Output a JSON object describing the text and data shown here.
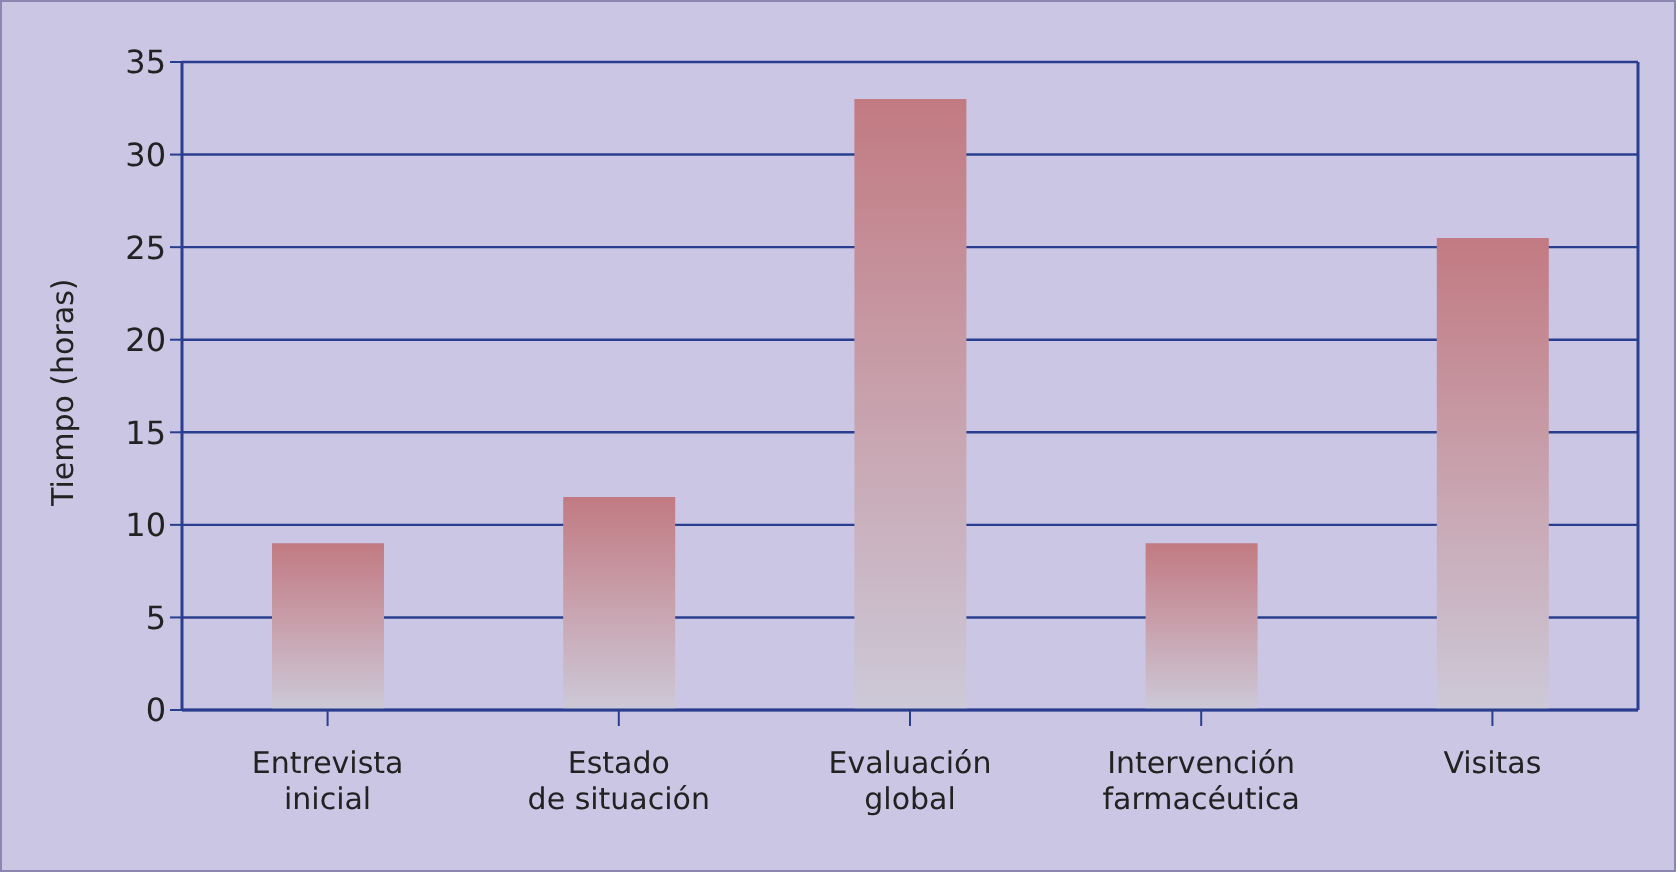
{
  "chart_data": {
    "type": "bar",
    "ylabel": "Tiempo (horas)",
    "categories": [
      "Entrevista\ninicial",
      "Estado\nde situación",
      "Evaluación\nglobal",
      "Intervención\nfarmacéutica",
      "Visitas"
    ],
    "values": [
      9,
      11.5,
      33,
      9,
      25.5
    ],
    "color": "#c27a82",
    "ylim": [
      0,
      35
    ],
    "yticks": [
      0,
      5,
      10,
      15,
      20,
      25,
      30,
      35
    ],
    "grid": "y"
  }
}
